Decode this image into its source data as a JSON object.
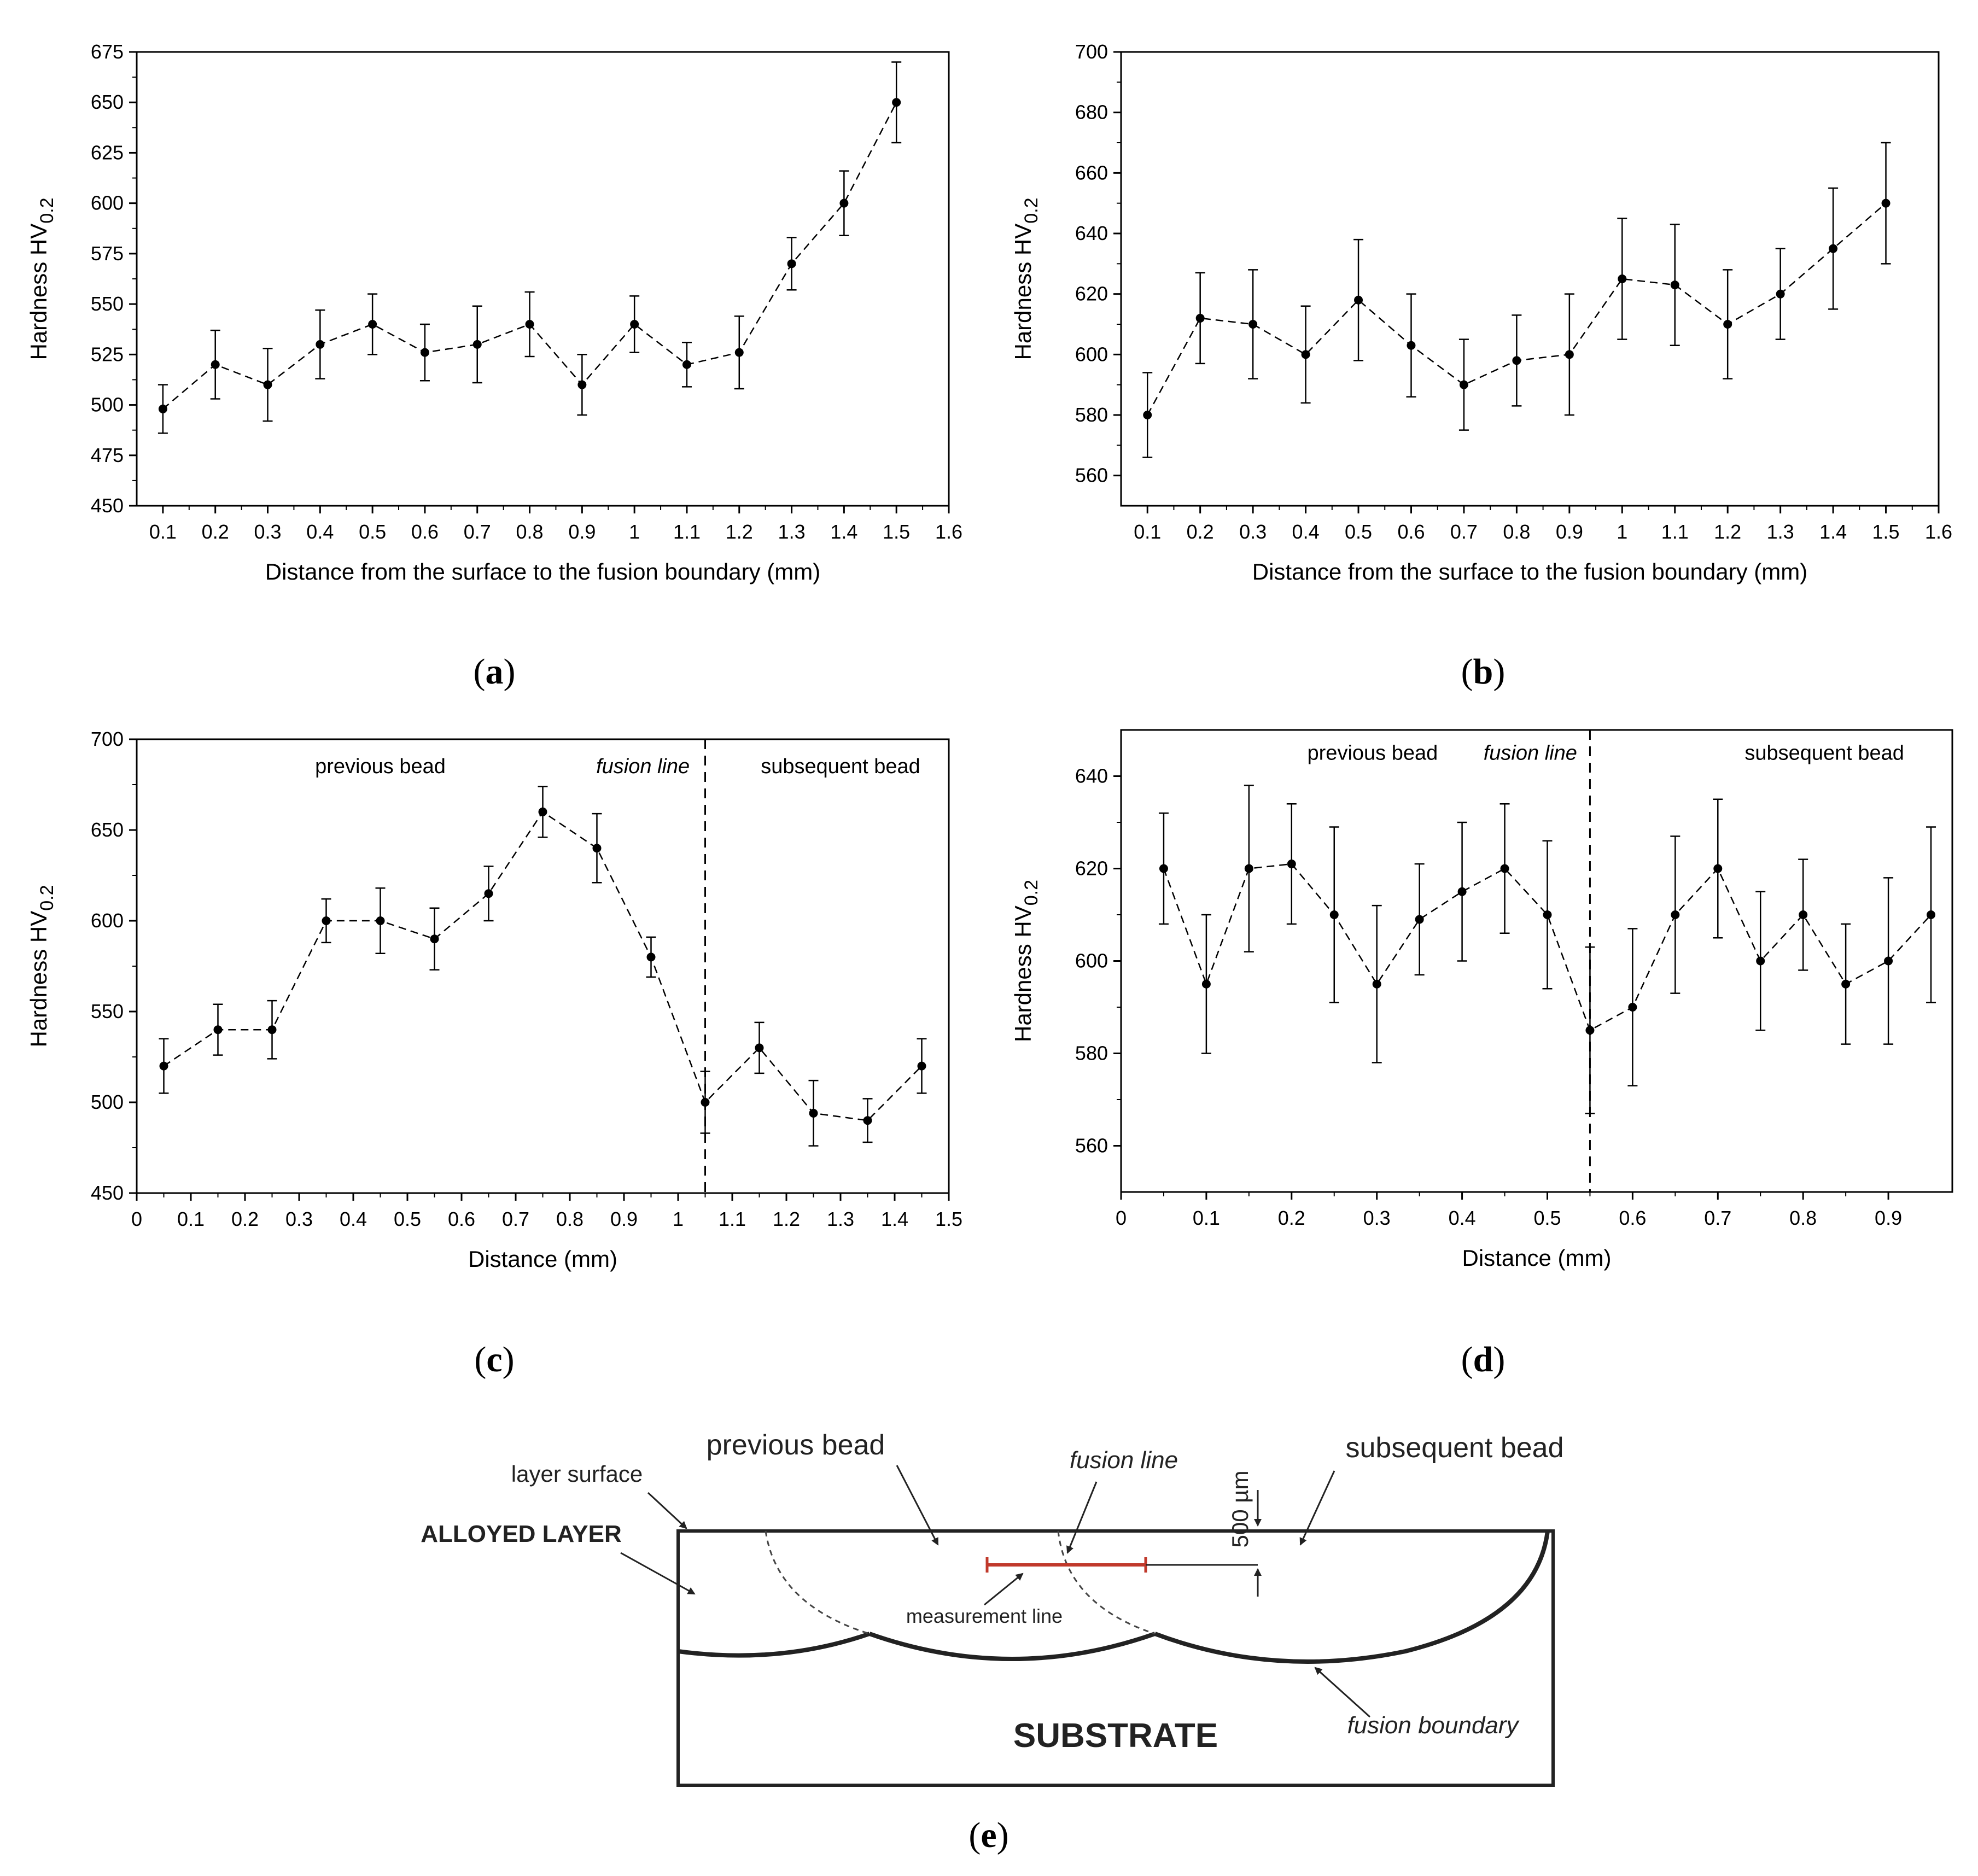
{
  "chart_data": [
    {
      "id": "a",
      "type": "line",
      "panel_label": "a",
      "xlabel": "Distance from the surface to the fusion boundary (mm)",
      "ylabel_main": "Hardness HV",
      "ylabel_sub": "0.2",
      "xlim": [
        0.05,
        1.6
      ],
      "ylim": [
        450,
        675
      ],
      "xticks": [
        0.1,
        0.2,
        0.3,
        0.4,
        0.5,
        0.6,
        0.7,
        0.8,
        0.9,
        1,
        1.1,
        1.2,
        1.3,
        1.4,
        1.5,
        1.6
      ],
      "xtick_labels": [
        "0.1",
        "0.2",
        "0.3",
        "0.4",
        "0.5",
        "0.6",
        "0.7",
        "0.8",
        "0.9",
        "1",
        "1.1",
        "1.2",
        "1.3",
        "1.4",
        "1.5",
        "1.6"
      ],
      "yticks": [
        450,
        475,
        500,
        525,
        550,
        575,
        600,
        625,
        650,
        675
      ],
      "ytick_labels": [
        "450",
        "475",
        "500",
        "525",
        "550",
        "575",
        "600",
        "625",
        "650",
        "675"
      ],
      "series": [
        {
          "name": "hardness",
          "x": [
            0.1,
            0.2,
            0.3,
            0.4,
            0.5,
            0.6,
            0.7,
            0.8,
            0.9,
            1.0,
            1.1,
            1.2,
            1.3,
            1.4,
            1.5
          ],
          "y": [
            498,
            520,
            510,
            530,
            540,
            526,
            530,
            540,
            510,
            540,
            520,
            526,
            570,
            600,
            650
          ],
          "err": [
            12,
            17,
            18,
            17,
            15,
            14,
            19,
            16,
            15,
            14,
            11,
            18,
            13,
            16,
            20
          ]
        }
      ],
      "annotations": []
    },
    {
      "id": "b",
      "type": "line",
      "panel_label": "b",
      "xlabel": "Distance from the surface to the fusion boundary (mm)",
      "ylabel_main": "Hardness HV",
      "ylabel_sub": "0.2",
      "xlim": [
        0.05,
        1.6
      ],
      "ylim": [
        550,
        700
      ],
      "xticks": [
        0.1,
        0.2,
        0.3,
        0.4,
        0.5,
        0.6,
        0.7,
        0.8,
        0.9,
        1,
        1.1,
        1.2,
        1.3,
        1.4,
        1.5,
        1.6
      ],
      "xtick_labels": [
        "0.1",
        "0.2",
        "0.3",
        "0.4",
        "0.5",
        "0.6",
        "0.7",
        "0.8",
        "0.9",
        "1",
        "1.1",
        "1.2",
        "1.3",
        "1.4",
        "1.5",
        "1.6"
      ],
      "yticks": [
        560,
        580,
        600,
        620,
        640,
        660,
        680,
        700
      ],
      "ytick_labels": [
        "560",
        "580",
        "600",
        "620",
        "640",
        "660",
        "680",
        "700"
      ],
      "series": [
        {
          "name": "hardness",
          "x": [
            0.1,
            0.2,
            0.3,
            0.4,
            0.5,
            0.6,
            0.7,
            0.8,
            0.9,
            1.0,
            1.1,
            1.2,
            1.3,
            1.4,
            1.5
          ],
          "y": [
            580,
            612,
            610,
            600,
            618,
            603,
            590,
            598,
            600,
            625,
            623,
            610,
            620,
            635,
            650
          ],
          "err": [
            14,
            15,
            18,
            16,
            20,
            17,
            15,
            15,
            20,
            20,
            20,
            18,
            15,
            20,
            20
          ]
        }
      ],
      "annotations": []
    },
    {
      "id": "c",
      "type": "line",
      "panel_label": "c",
      "xlabel": "Distance (mm)",
      "ylabel_main": "Hardness HV",
      "ylabel_sub": "0.2",
      "xlim": [
        0,
        1.5
      ],
      "ylim": [
        450,
        700
      ],
      "xticks": [
        0,
        0.1,
        0.2,
        0.3,
        0.4,
        0.5,
        0.6,
        0.7,
        0.8,
        0.9,
        1,
        1.1,
        1.2,
        1.3,
        1.4,
        1.5
      ],
      "xtick_labels": [
        "0",
        "0.1",
        "0.2",
        "0.3",
        "0.4",
        "0.5",
        "0.6",
        "0.7",
        "0.8",
        "0.9",
        "1",
        "1.1",
        "1.2",
        "1.3",
        "1.4",
        "1.5"
      ],
      "yticks": [
        450,
        500,
        550,
        600,
        650,
        700
      ],
      "ytick_labels": [
        "450",
        "500",
        "550",
        "600",
        "650",
        "700"
      ],
      "series": [
        {
          "name": "hardness",
          "x": [
            0.05,
            0.15,
            0.25,
            0.35,
            0.45,
            0.55,
            0.65,
            0.75,
            0.85,
            0.95,
            1.05,
            1.15,
            1.25,
            1.35,
            1.45
          ],
          "y": [
            520,
            540,
            540,
            600,
            600,
            590,
            615,
            660,
            640,
            580,
            500,
            530,
            494,
            490,
            520
          ],
          "err": [
            15,
            14,
            16,
            12,
            18,
            17,
            15,
            14,
            19,
            11,
            17,
            14,
            18,
            12,
            15
          ]
        }
      ],
      "fusion_line_x": 1.05,
      "annotations": [
        {
          "text": "previous bead",
          "x": 0.45,
          "y": 685,
          "style": "normal"
        },
        {
          "text": "fusion line",
          "x": 0.935,
          "y": 685,
          "style": "italic"
        },
        {
          "text": "subsequent bead",
          "x": 1.3,
          "y": 685,
          "style": "normal"
        }
      ]
    },
    {
      "id": "d",
      "type": "line",
      "panel_label": "d",
      "xlabel": "Distance (mm)",
      "ylabel_main": "Hardness HV",
      "ylabel_sub": "0.2",
      "xlim": [
        0,
        0.975
      ],
      "ylim": [
        550,
        650
      ],
      "xticks": [
        0,
        0.1,
        0.2,
        0.3,
        0.4,
        0.5,
        0.6,
        0.7,
        0.8,
        0.9
      ],
      "xtick_labels": [
        "0",
        "0.1",
        "0.2",
        "0.3",
        "0.4",
        "0.5",
        "0.6",
        "0.7",
        "0.8",
        "0.9"
      ],
      "yticks": [
        560,
        580,
        600,
        620,
        640
      ],
      "ytick_labels": [
        "560",
        "580",
        "600",
        "620",
        "640"
      ],
      "series": [
        {
          "name": "hardness",
          "x": [
            0.05,
            0.1,
            0.15,
            0.2,
            0.25,
            0.3,
            0.35,
            0.4,
            0.45,
            0.5,
            0.55,
            0.6,
            0.65,
            0.7,
            0.75,
            0.8,
            0.85,
            0.9,
            0.95
          ],
          "y": [
            620,
            595,
            620,
            621,
            610,
            595,
            609,
            615,
            620,
            610,
            585,
            590,
            610,
            620,
            600,
            610,
            595,
            600,
            610
          ],
          "err": [
            12,
            15,
            18,
            13,
            19,
            17,
            12,
            15,
            14,
            16,
            18,
            17,
            17,
            15,
            15,
            12,
            13,
            18,
            19
          ]
        }
      ],
      "fusion_line_x": 0.55,
      "annotations": [
        {
          "text": "previous bead",
          "x": 0.295,
          "y": 645,
          "style": "normal"
        },
        {
          "text": "fusion line",
          "x": 0.48,
          "y": 645,
          "style": "italic"
        },
        {
          "text": "subsequent bead",
          "x": 0.825,
          "y": 645,
          "style": "normal"
        }
      ]
    }
  ],
  "diagram": {
    "panel_label": "e",
    "previous_bead": "previous bead",
    "subsequent_bead": "subsequent bead",
    "layer_surface": "layer surface",
    "alloyed_layer": "ALLOYED LAYER",
    "fusion_line": "fusion line",
    "depth_label": "500 µm",
    "measurement_line": "measurement line",
    "substrate": "SUBSTRATE",
    "fusion_boundary": "fusion boundary",
    "measurement_color": "#c0392b"
  }
}
